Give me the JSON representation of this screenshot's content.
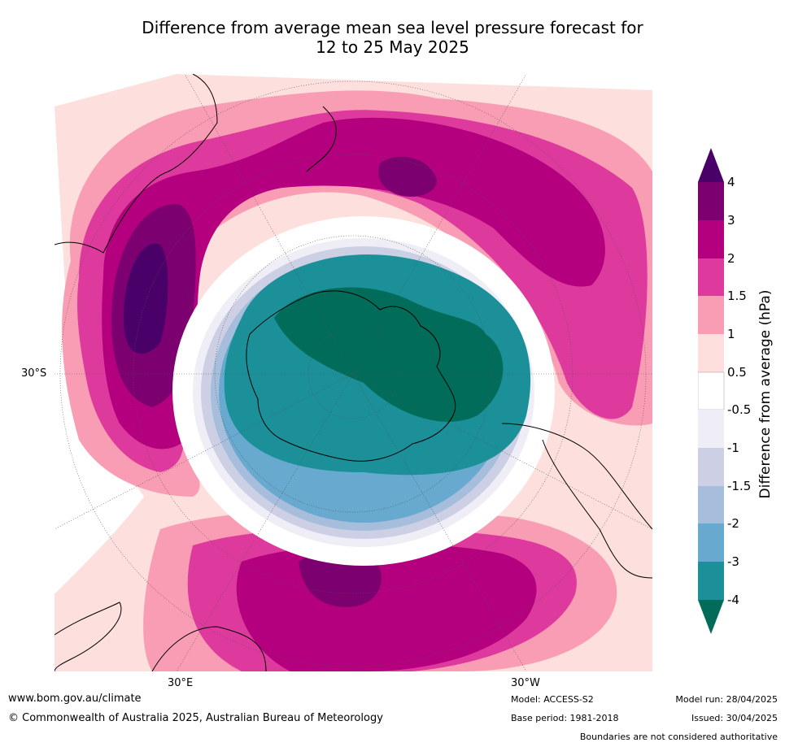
{
  "title_line1": "Difference from average mean sea level pressure forecast for",
  "title_line2": "12 to 25 May 2025",
  "map_labels": {
    "lat_30s": "30°S",
    "lon_30e": "30°E",
    "lon_30w": "30°W"
  },
  "colorbar": {
    "label": "Difference from average (hPa)",
    "ticks": [
      "4",
      "3",
      "2",
      "1.5",
      "1",
      "0.5",
      "-0.5",
      "-1",
      "-1.5",
      "-2",
      "-3",
      "-4"
    ],
    "colors": {
      "above_4": "#4a0069",
      "3_to_4": "#7c006f",
      "2_to_3": "#b4007e",
      "1.5_to_2": "#de3a9e",
      "1_to_1.5": "#f99db4",
      "0.5_to_1": "#fde0dd",
      "-0.5_to_0.5": "#ffffff",
      "-1_to_-0.5": "#efedf5",
      "-1.5_to_-1": "#cdd0e5",
      "-2_to_-1.5": "#a6bddb",
      "-3_to_-2": "#67a9cf",
      "-4_to_-3": "#1c9099",
      "below_-4": "#016c59"
    }
  },
  "footer": {
    "website": "www.bom.gov.au/climate",
    "copyright": "© Commonwealth of Australia 2025, Australian Bureau of Meteorology",
    "model": "Model: ACCESS-S2",
    "base_period": "Base period: 1981-2018",
    "model_run": "Model run: 28/04/2025",
    "issued": "Issued: 30/04/2025",
    "disclaimer": "Boundaries are not considered authoritative"
  }
}
